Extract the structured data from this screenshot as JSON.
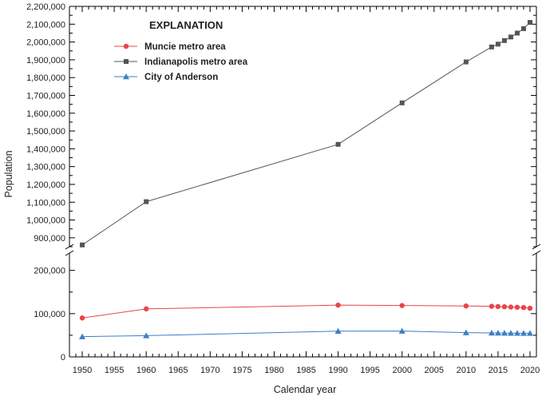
{
  "chart_data": {
    "type": "line",
    "xlabel": "Calendar year",
    "ylabel": "Population",
    "legend_title": "EXPLANATION",
    "legend_position": "top-left",
    "axis_break": "y-axis broken between 200,000 and about 850,000",
    "xlim": [
      1948,
      2021
    ],
    "x_ticks": [
      1950,
      1955,
      1960,
      1965,
      1970,
      1975,
      1980,
      1985,
      1990,
      1995,
      2000,
      2005,
      2010,
      2015,
      2020
    ],
    "x_tick_labels": [
      "1950",
      "1955",
      "1960",
      "1965",
      "1970",
      "1975",
      "1980",
      "1985",
      "1990",
      "1995",
      "2000",
      "2005",
      "2010",
      "2015",
      "2020"
    ],
    "y_upper": {
      "ylim": [
        850000,
        2200000
      ],
      "ticks": [
        900000,
        1000000,
        1100000,
        1200000,
        1300000,
        1400000,
        1500000,
        1600000,
        1700000,
        1800000,
        1900000,
        2000000,
        2100000,
        2200000
      ],
      "tick_labels": [
        "900,000",
        "1,000,000",
        "1,100,000",
        "1,200,000",
        "1,300,000",
        "1,400,000",
        "1,500,000",
        "1,600,000",
        "1,700,000",
        "1,800,000",
        "1,900,000",
        "2,000,000",
        "2,100,000",
        "2,200,000"
      ]
    },
    "y_lower": {
      "ylim": [
        0,
        240000
      ],
      "ticks": [
        0,
        100000,
        200000
      ],
      "tick_labels": [
        "0",
        "100,000",
        "200,000"
      ]
    },
    "series": [
      {
        "name": "Muncie metro area",
        "color": "#e8454a",
        "marker": "circle",
        "panel": "lower",
        "x": [
          1950,
          1960,
          1990,
          2000,
          2010,
          2014,
          2015,
          2016,
          2017,
          2018,
          2019,
          2020
        ],
        "y": [
          90000,
          111000,
          119700,
          118800,
          117700,
          117000,
          116400,
          115900,
          115200,
          114700,
          114100,
          112500
        ]
      },
      {
        "name": "Indianapolis metro area",
        "color": "#555555",
        "marker": "square",
        "panel": "upper",
        "x": [
          1950,
          1960,
          1990,
          2000,
          2010,
          2014,
          2015,
          2016,
          2017,
          2018,
          2019,
          2020
        ],
        "y": [
          860000,
          1103000,
          1425000,
          1658000,
          1888000,
          1972000,
          1988000,
          2008000,
          2028000,
          2050000,
          2075000,
          2110000
        ]
      },
      {
        "name": "City of Anderson",
        "color": "#3d7fc4",
        "marker": "triangle",
        "panel": "lower",
        "x": [
          1950,
          1960,
          1990,
          2000,
          2010,
          2014,
          2015,
          2016,
          2017,
          2018,
          2019,
          2020
        ],
        "y": [
          46800,
          49100,
          59500,
          59700,
          56100,
          55400,
          55200,
          55100,
          54900,
          54800,
          54700,
          54600
        ]
      }
    ]
  }
}
